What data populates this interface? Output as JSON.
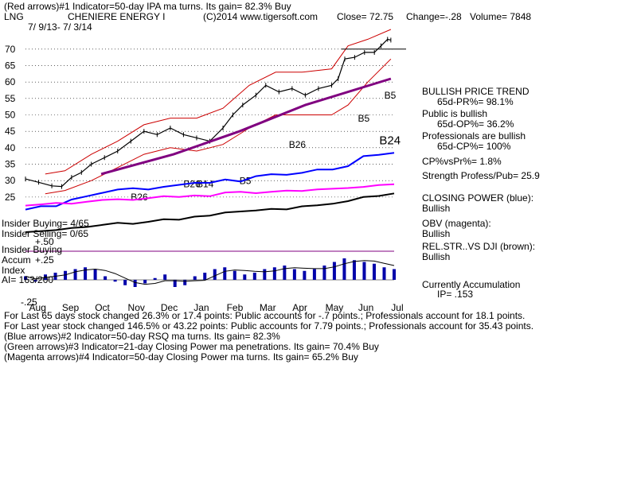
{
  "header": {
    "line1": "(Red arrows)#1 Indicator=50-day IPA ma turns. Its gain= 82.3% Buy",
    "symbol": "LNG",
    "company": "CHENIERE ENERGY I",
    "copyright": "(C)2014 www.tigersoft.com",
    "close": "Close= 72.75",
    "change": "Change=-.28",
    "volume": "Volume= 7848",
    "dates": "7/ 9/13- 7/ 3/14"
  },
  "insider": {
    "buying": "Insider Buying= 4/65",
    "selling": "Insider Selling= 0/65",
    "buying_line": "Insider Buying",
    "accum": "Accum",
    "index": "Index",
    "ai": "AI= 163/200",
    "plus50": "+.50",
    "plus25": "+.25",
    "minus25": "-.25"
  },
  "sidebar": {
    "trend_title": "BULLISH PRICE TREND",
    "pr": "65d-PR%= 98.1%",
    "public_title": "Public is bullish",
    "op": "65d-OP%= 36.2%",
    "prof_title": "Professionals are bullish",
    "cp": "65d-CP%= 100%",
    "cpvspr": "CP%vsPr%= 1.8%",
    "strength": "Strength Profess/Pub= 25.9",
    "closing_title": "CLOSING POWER (blue):",
    "closing_val": "Bullish",
    "obv_title": "OBV (magenta):",
    "obv_val": "Bullish",
    "rel_title": "REL.STR..VS DJI (brown):",
    "rel_val": "Bullish",
    "accum_title": "Currently Accumulation",
    "accum_ip": "IP= .153"
  },
  "footer": {
    "line1": "For Last 65 days stock changed 26.3% or 17.4 points: Public accounts for -.7 points.; Professionals account for 18.1 points.",
    "line2": "For Last year stock changed 146.5% or 43.22 points: Public accounts for 7.79 points.; Professionals account for 35.43 points.",
    "line3": "(Blue arrows)#2 Indicator=50-day RSQ ma turns. Its gain= 82.3%",
    "line4": "(Green arrows)#3 Indicator=21-day Closing Power ma penetrations. Its gain= 70.4% Buy",
    "line5": "(Magenta arrows)#4 Indicator=50-day Closing Power ma turns. Its gain= 65.2% Buy"
  },
  "colors": {
    "price": "#000000",
    "bands": "#cc0000",
    "ma": "#800080",
    "closing_power": "#0000ff",
    "obv": "#ff00ff",
    "relstr": "#000000",
    "accum": "#0000aa",
    "grid": "#000000"
  },
  "chart_data": {
    "type": "line",
    "ylabels": [
      "70",
      "65",
      "60",
      "55",
      "50",
      "45",
      "40",
      "35",
      "30",
      "25"
    ],
    "ylim": [
      24,
      76
    ],
    "months": [
      "Aug",
      "Sep",
      "Oct",
      "Nov",
      "Dec",
      "Jan",
      "Feb",
      "Mar",
      "Apr",
      "May",
      "Jun",
      "Jul"
    ],
    "month_positions": [
      0.4,
      1.4,
      2.4,
      3.4,
      4.4,
      5.4,
      6.4,
      7.4,
      8.4,
      9.4,
      10.4,
      11.4
    ],
    "x_max": 11.2,
    "price_series": [
      {
        "x": 0,
        "y": 30.5
      },
      {
        "x": 0.4,
        "y": 29.5
      },
      {
        "x": 0.8,
        "y": 28.4
      },
      {
        "x": 1.1,
        "y": 28.2
      },
      {
        "x": 1.4,
        "y": 31
      },
      {
        "x": 1.7,
        "y": 32.5
      },
      {
        "x": 2.0,
        "y": 35
      },
      {
        "x": 2.4,
        "y": 37
      },
      {
        "x": 2.8,
        "y": 39
      },
      {
        "x": 3.2,
        "y": 42
      },
      {
        "x": 3.6,
        "y": 45
      },
      {
        "x": 4.0,
        "y": 44
      },
      {
        "x": 4.4,
        "y": 46
      },
      {
        "x": 4.8,
        "y": 44
      },
      {
        "x": 5.2,
        "y": 43
      },
      {
        "x": 5.6,
        "y": 42
      },
      {
        "x": 6.0,
        "y": 46
      },
      {
        "x": 6.3,
        "y": 50
      },
      {
        "x": 6.6,
        "y": 53
      },
      {
        "x": 7.0,
        "y": 56
      },
      {
        "x": 7.3,
        "y": 59
      },
      {
        "x": 7.7,
        "y": 57
      },
      {
        "x": 8.1,
        "y": 58
      },
      {
        "x": 8.5,
        "y": 56
      },
      {
        "x": 8.9,
        "y": 58
      },
      {
        "x": 9.3,
        "y": 59
      },
      {
        "x": 9.5,
        "y": 61
      },
      {
        "x": 9.7,
        "y": 67
      },
      {
        "x": 10.0,
        "y": 67.5
      },
      {
        "x": 10.3,
        "y": 69
      },
      {
        "x": 10.6,
        "y": 69
      },
      {
        "x": 10.8,
        "y": 71
      },
      {
        "x": 11.0,
        "y": 73
      },
      {
        "x": 11.1,
        "y": 72.75
      }
    ],
    "ma_line": [
      {
        "x": 2.3,
        "y": 32
      },
      {
        "x": 4.5,
        "y": 38
      },
      {
        "x": 6.5,
        "y": 45
      },
      {
        "x": 8.5,
        "y": 53
      },
      {
        "x": 11.1,
        "y": 61
      }
    ],
    "upper_band": [
      {
        "x": 0.6,
        "y": 32
      },
      {
        "x": 1.2,
        "y": 33
      },
      {
        "x": 2.0,
        "y": 38
      },
      {
        "x": 2.8,
        "y": 42
      },
      {
        "x": 3.6,
        "y": 47
      },
      {
        "x": 4.4,
        "y": 49
      },
      {
        "x": 5.2,
        "y": 49
      },
      {
        "x": 6.0,
        "y": 52
      },
      {
        "x": 6.8,
        "y": 59
      },
      {
        "x": 7.6,
        "y": 63
      },
      {
        "x": 8.4,
        "y": 63
      },
      {
        "x": 9.3,
        "y": 64
      },
      {
        "x": 9.8,
        "y": 71
      },
      {
        "x": 10.4,
        "y": 73
      },
      {
        "x": 11.1,
        "y": 76
      }
    ],
    "lower_band": [
      {
        "x": 0.6,
        "y": 26
      },
      {
        "x": 1.2,
        "y": 27
      },
      {
        "x": 2.0,
        "y": 30
      },
      {
        "x": 2.8,
        "y": 34
      },
      {
        "x": 3.6,
        "y": 38
      },
      {
        "x": 4.4,
        "y": 40
      },
      {
        "x": 5.2,
        "y": 39
      },
      {
        "x": 6.0,
        "y": 41
      },
      {
        "x": 6.8,
        "y": 46
      },
      {
        "x": 7.6,
        "y": 50
      },
      {
        "x": 8.4,
        "y": 50
      },
      {
        "x": 9.3,
        "y": 50
      },
      {
        "x": 9.8,
        "y": 53
      },
      {
        "x": 10.4,
        "y": 60
      },
      {
        "x": 11.1,
        "y": 67
      }
    ],
    "resistance_level": 70,
    "lower_panels": {
      "closing_power": [
        0.1,
        0.15,
        0.15,
        0.25,
        0.3,
        0.35,
        0.4,
        0.42,
        0.4,
        0.44,
        0.47,
        0.5,
        0.5,
        0.55,
        0.52,
        0.6,
        0.63,
        0.62,
        0.65,
        0.7,
        0.7,
        0.75,
        0.9,
        0.92,
        0.95
      ],
      "obv": [
        0.35,
        0.38,
        0.42,
        0.4,
        0.45,
        0.5,
        0.52,
        0.5,
        0.55,
        0.6,
        0.58,
        0.62,
        0.6,
        0.7,
        0.72,
        0.68,
        0.72,
        0.75,
        0.74,
        0.78,
        0.8,
        0.82,
        0.85,
        0.9,
        0.92
      ],
      "relstr": [
        0.2,
        0.22,
        0.24,
        0.28,
        0.3,
        0.34,
        0.38,
        0.36,
        0.4,
        0.45,
        0.44,
        0.5,
        0.52,
        0.58,
        0.6,
        0.62,
        0.65,
        0.64,
        0.7,
        0.72,
        0.75,
        0.8,
        0.88,
        0.9,
        0.95
      ],
      "accumulation": [
        0.1,
        -0.05,
        0.15,
        0.2,
        0.25,
        0.3,
        0.35,
        0.3,
        0.1,
        -0.05,
        -0.15,
        -0.2,
        -0.1,
        0.05,
        0.15,
        -0.2,
        -0.15,
        0.1,
        0.2,
        0.3,
        0.35,
        0.25,
        0.15,
        0.2,
        0.3,
        0.35,
        0.4,
        0.3,
        0.25,
        0.3,
        0.4,
        0.5,
        0.6,
        0.55,
        0.5,
        0.45,
        0.35,
        0.3
      ]
    },
    "signal_labels": [
      {
        "text": "B5",
        "x": 10.9,
        "y": 55,
        "color": "#000000"
      },
      {
        "text": "B5",
        "x": 10.1,
        "y": 48,
        "color": "#000000"
      },
      {
        "text": "B24",
        "x": 10.75,
        "y": 41,
        "color": "#000000"
      },
      {
        "text": "B26",
        "x": 8.0,
        "y": 40,
        "color": "#000000"
      },
      {
        "text": "B5",
        "x": 6.5,
        "y": 29,
        "color": "#000000"
      },
      {
        "text": "B26",
        "x": 4.8,
        "y": 28,
        "color": "#000000"
      },
      {
        "text": "B14",
        "x": 5.2,
        "y": 28,
        "color": "#000000"
      },
      {
        "text": "B26",
        "x": 3.2,
        "y": 24,
        "color": "#000000"
      }
    ]
  }
}
